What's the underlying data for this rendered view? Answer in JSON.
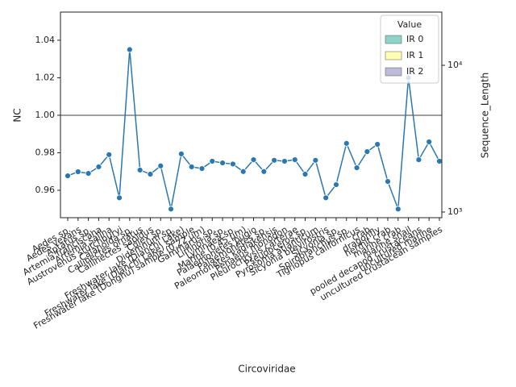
{
  "chart_data": {
    "type": "line",
    "x_label": "Circoviridae",
    "y_label": "NC",
    "y2_label": "Sequence_Length",
    "categories": [
      "Aedes sp.",
      "Aedes vexans",
      "Aptatus sp.",
      "Artemia franciscana",
      "Artemia salina",
      "Austrovenus stutchburyi",
      "Calanoida sp.",
      "Callinectes ornatus",
      "Callinectes sapidus",
      "Culex sp.",
      "Didemnum sp.",
      "Freshwater lake (Dianchi Lake)",
      "Freshwater lake (Dianchi Lake) sample",
      "Freshwater lake (Donghu) sample (0.22 μm)",
      "Gammarus sp.",
      "Limnoria sp.",
      "Lymnaea sp.",
      "Marine (0.45 μm)",
      "Palaemonetes pugio",
      "Palaemonetes sp.",
      "Paleomonetes kadiakensis",
      "Penaeus monodon",
      "Pleurochrysis carterae",
      "Pseudoceros sp.",
      "Pyrosoma atlanticum",
      "Sicyonia brevirostris",
      "Sicyonia sp.",
      "Spirobranchus sp.",
      "Tigriopus californicus",
      "crab",
      "dragonfly",
      "hermit crab",
      "marine crab",
      "marine snail",
      "pooled decapod crustaceans",
      "uncultured marine",
      "uncultured crustacean samples"
    ],
    "series": [
      {
        "name": "NC",
        "color": "#2a78b0",
        "values": [
          0.9677,
          0.9699,
          0.969,
          0.9725,
          0.979,
          0.956,
          1.035,
          0.9708,
          0.9686,
          0.973,
          0.95,
          0.9794,
          0.9725,
          0.9716,
          0.9755,
          0.9746,
          0.974,
          0.97,
          0.9763,
          0.97,
          0.976,
          0.9755,
          0.9763,
          0.9686,
          0.976,
          0.956,
          0.963,
          0.985,
          0.972,
          0.9806,
          0.9845,
          0.9647,
          0.95,
          1.02,
          0.9763,
          0.9858,
          0.9755
        ]
      }
    ],
    "reference_line": {
      "value": 1,
      "color": "#808080"
    },
    "ylim": [
      0.9454,
      1.055
    ],
    "yticks": [
      0.96,
      0.98,
      {
        "value": 1,
        "label": "1.00"
      },
      1.02,
      1.04
    ],
    "y2lim": [
      915,
      23050
    ],
    "y2_log": true,
    "y2ticks": [
      {
        "value": 1000,
        "label": "10³"
      },
      {
        "value": 10000,
        "label": "10⁴"
      }
    ],
    "legend": {
      "title": "Value",
      "position": "upper right",
      "entries": [
        {
          "name": "IR 0",
          "color": "#8dd3c7"
        },
        {
          "name": "IR 1",
          "color": "#ffffb3"
        },
        {
          "name": "IR 2",
          "color": "#bebada"
        }
      ]
    }
  }
}
